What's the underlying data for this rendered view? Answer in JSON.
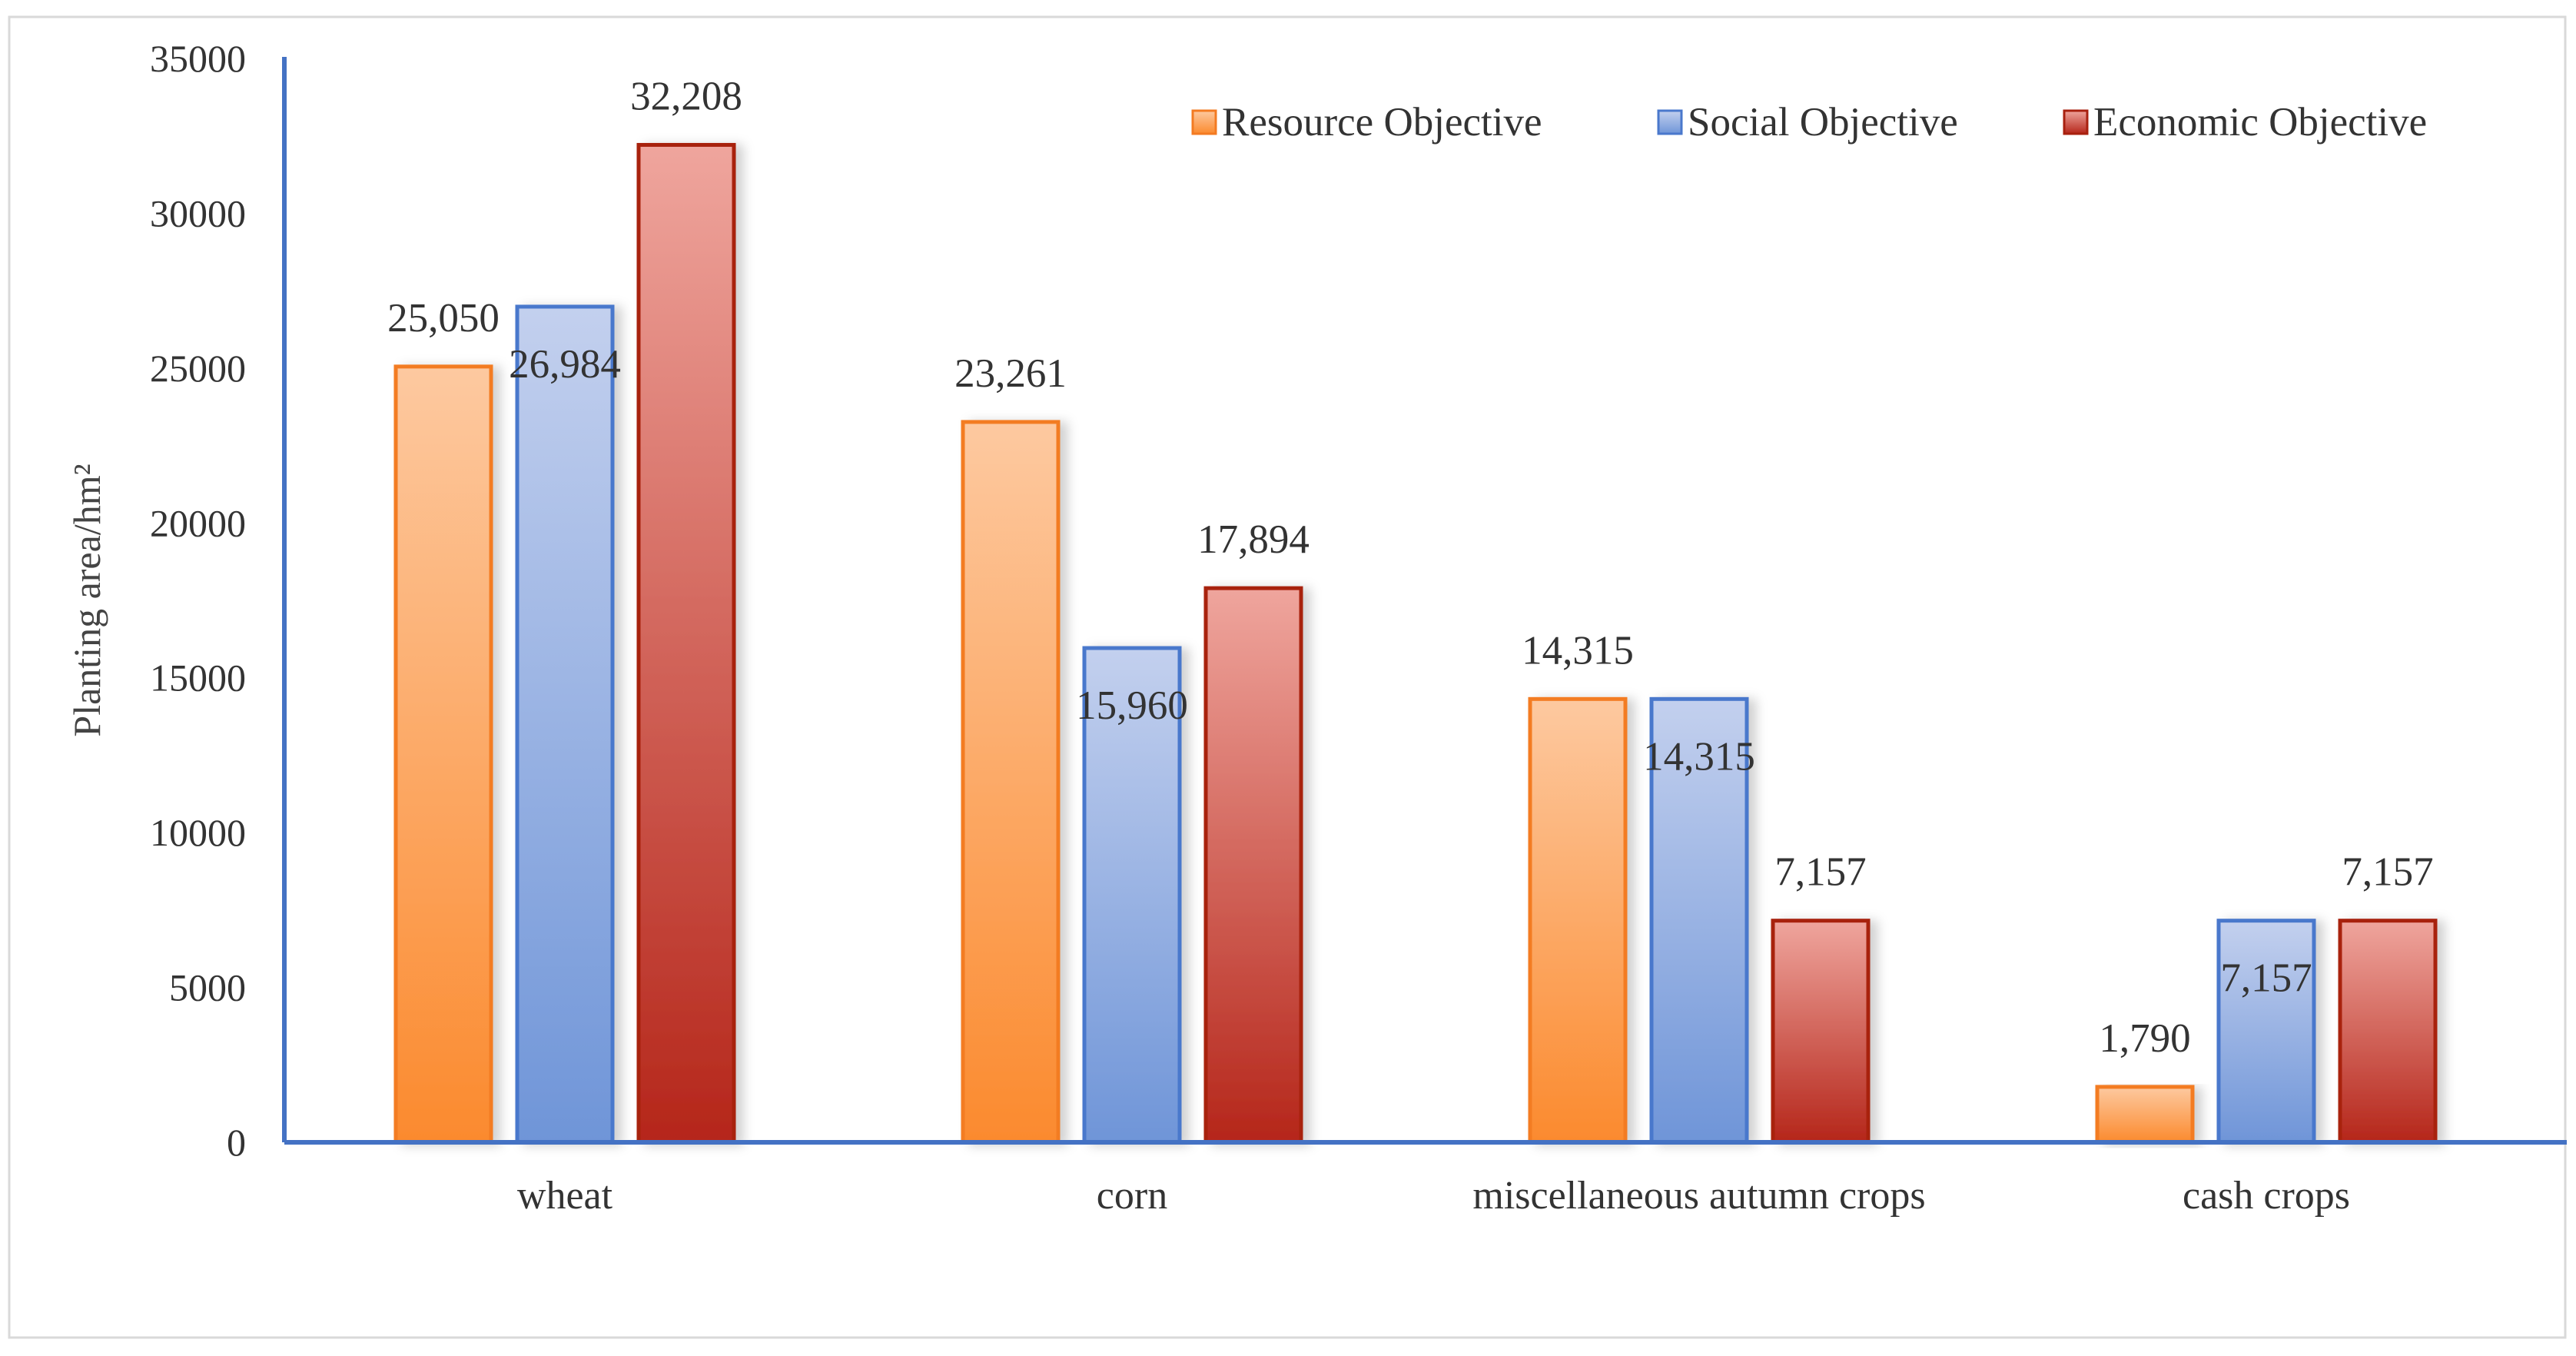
{
  "chart_data": {
    "type": "bar",
    "title": "",
    "xlabel": "",
    "ylabel": "Planting area/hm²",
    "categories": [
      "wheat",
      "corn",
      "miscellaneous autumn crops",
      "cash crops"
    ],
    "series": [
      {
        "name": "Resource Objective",
        "values": [
          25050,
          23261,
          14315,
          1790
        ],
        "labels": [
          "25,050",
          "23,261",
          "14,315",
          "1,790"
        ]
      },
      {
        "name": "Social Objective",
        "values": [
          26984,
          15960,
          14315,
          7157
        ],
        "labels": [
          "26,984",
          "15,960",
          "14,315",
          "7,157"
        ]
      },
      {
        "name": "Economic Objective",
        "values": [
          32208,
          17894,
          7157,
          7157
        ],
        "labels": [
          "32,208",
          "17,894",
          "7,157",
          "7,157"
        ]
      }
    ],
    "ylim": [
      0,
      35000
    ],
    "yticks": [
      "0",
      "5000",
      "10000",
      "15000",
      "20000",
      "25000",
      "30000",
      "35000"
    ],
    "grid": false,
    "legend_position": "top-right"
  },
  "colors": {
    "resource": {
      "light": "#fdc9a0",
      "dark": "#fb8a2e",
      "stroke": "#f37b22"
    },
    "social": {
      "light": "#c3d0ee",
      "dark": "#6f95d8",
      "stroke": "#4a78cc"
    },
    "economic": {
      "light": "#efa59d",
      "dark": "#b5261a",
      "stroke": "#a8200f"
    },
    "axis": "#4472c4",
    "border": "#d9d9d9"
  }
}
